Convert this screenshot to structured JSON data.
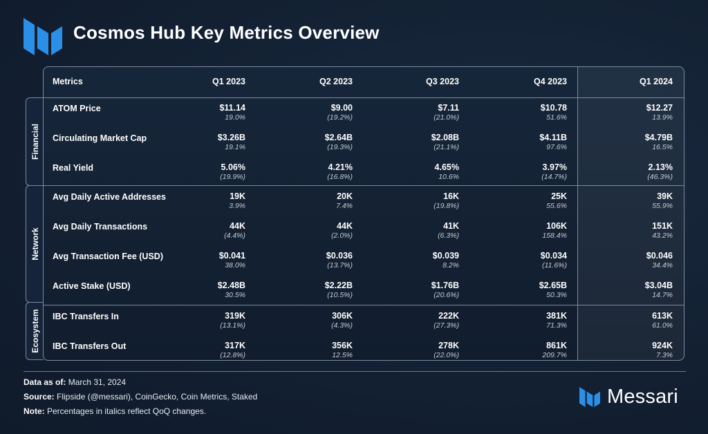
{
  "title": "Cosmos Hub Key Metrics Overview",
  "brand": {
    "name": "Messari",
    "accent": "#2b8fe8"
  },
  "table": {
    "metric_header": "Metrics",
    "periods": [
      "Q1 2023",
      "Q2 2023",
      "Q3 2023",
      "Q4 2023",
      "Q1 2024"
    ],
    "sections": [
      {
        "name": "Financial",
        "rows": [
          {
            "metric": "ATOM Price",
            "cells": [
              {
                "value": "$11.14",
                "change": "19.0%"
              },
              {
                "value": "$9.00",
                "change": "(19.2%)"
              },
              {
                "value": "$7.11",
                "change": "(21.0%)"
              },
              {
                "value": "$10.78",
                "change": "51.6%"
              },
              {
                "value": "$12.27",
                "change": "13.9%"
              }
            ]
          },
          {
            "metric": "Circulating Market Cap",
            "cells": [
              {
                "value": "$3.26B",
                "change": "19.1%"
              },
              {
                "value": "$2.64B",
                "change": "(19.3%)"
              },
              {
                "value": "$2.08B",
                "change": "(21.1%)"
              },
              {
                "value": "$4.11B",
                "change": "97.6%"
              },
              {
                "value": "$4.79B",
                "change": "16.5%"
              }
            ]
          },
          {
            "metric": "Real Yield",
            "cells": [
              {
                "value": "5.06%",
                "change": "(19.9%)"
              },
              {
                "value": "4.21%",
                "change": "(16.8%)"
              },
              {
                "value": "4.65%",
                "change": "10.6%"
              },
              {
                "value": "3.97%",
                "change": "(14.7%)"
              },
              {
                "value": "2.13%",
                "change": "(46.3%)"
              }
            ]
          }
        ]
      },
      {
        "name": "Network",
        "rows": [
          {
            "metric": "Avg Daily Active Addresses",
            "cells": [
              {
                "value": "19K",
                "change": "3.9%"
              },
              {
                "value": "20K",
                "change": "7.4%"
              },
              {
                "value": "16K",
                "change": "(19.8%)"
              },
              {
                "value": "25K",
                "change": "55.6%"
              },
              {
                "value": "39K",
                "change": "55.9%"
              }
            ]
          },
          {
            "metric": "Avg Daily Transactions",
            "cells": [
              {
                "value": "44K",
                "change": "(4.4%)"
              },
              {
                "value": "44K",
                "change": "(2.0%)"
              },
              {
                "value": "41K",
                "change": "(6.3%)"
              },
              {
                "value": "106K",
                "change": "158.4%"
              },
              {
                "value": "151K",
                "change": "43.2%"
              }
            ]
          },
          {
            "metric": "Avg Transaction Fee (USD)",
            "cells": [
              {
                "value": "$0.041",
                "change": "38.0%"
              },
              {
                "value": "$0.036",
                "change": "(13.7%)"
              },
              {
                "value": "$0.039",
                "change": "8.2%"
              },
              {
                "value": "$0.034",
                "change": "(11.6%)"
              },
              {
                "value": "$0.046",
                "change": "34.4%"
              }
            ]
          },
          {
            "metric": "Active Stake (USD)",
            "cells": [
              {
                "value": "$2.48B",
                "change": "30.5%"
              },
              {
                "value": "$2.22B",
                "change": "(10.5%)"
              },
              {
                "value": "$1.76B",
                "change": "(20.6%)"
              },
              {
                "value": "$2.65B",
                "change": "50.3%"
              },
              {
                "value": "$3.04B",
                "change": "14.7%"
              }
            ]
          }
        ]
      },
      {
        "name": "Ecosystem",
        "rows": [
          {
            "metric": "IBC Transfers In",
            "cells": [
              {
                "value": "319K",
                "change": "(13.1%)"
              },
              {
                "value": "306K",
                "change": "(4.3%)"
              },
              {
                "value": "222K",
                "change": "(27.3%)"
              },
              {
                "value": "381K",
                "change": "71.3%"
              },
              {
                "value": "613K",
                "change": "61.0%"
              }
            ]
          },
          {
            "metric": "IBC Transfers Out",
            "cells": [
              {
                "value": "317K",
                "change": "(12.8%)"
              },
              {
                "value": "356K",
                "change": "12.5%"
              },
              {
                "value": "278K",
                "change": "(22.0%)"
              },
              {
                "value": "861K",
                "change": "209.7%"
              },
              {
                "value": "924K",
                "change": "7.3%"
              }
            ]
          }
        ]
      }
    ]
  },
  "footer": {
    "data_as_of_label": "Data as of:",
    "data_as_of": " March 31, 2024",
    "source_label": "Source:",
    "source": " Flipside (@messari), CoinGecko, Coin Metrics, Staked",
    "note_label": "Note:",
    "note": " Percentages in italics reflect QoQ changes."
  }
}
